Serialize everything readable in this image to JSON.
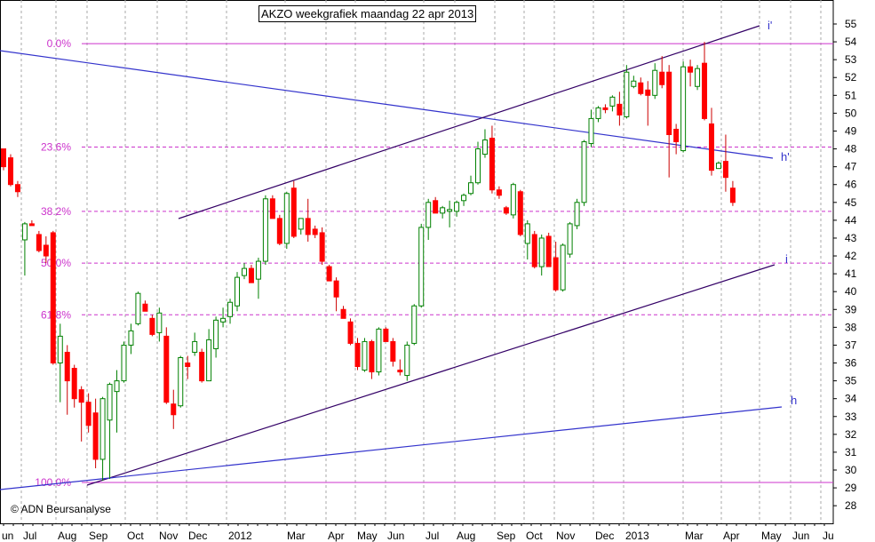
{
  "chart_data": {
    "type": "candlestick",
    "title": "AKZO weekgrafiek maandag 22 apr 2013",
    "copyright": "© ADN Beursanalyse",
    "ylim": [
      27,
      56
    ],
    "y_ticks": [
      28,
      29,
      30,
      31,
      32,
      33,
      34,
      35,
      36,
      37,
      38,
      39,
      40,
      41,
      42,
      43,
      44,
      45,
      46,
      47,
      48,
      49,
      50,
      51,
      52,
      53,
      54,
      55
    ],
    "x_labels": [
      "un",
      "Jul",
      "Aug",
      "Sep",
      "Oct",
      "Nov",
      "Dec",
      "2012",
      "Mar",
      "Apr",
      "May",
      "Jun",
      "Jul",
      "Aug",
      "Sep",
      "Oct",
      "Nov",
      "Dec",
      "2013",
      "Mar",
      "Apr",
      "May",
      "Jun",
      "Ju"
    ],
    "fib_levels": [
      {
        "label": "0.0%",
        "value": 53.9
      },
      {
        "label": "23.6%",
        "value": 48.1
      },
      {
        "label": "38.2%",
        "value": 44.5
      },
      {
        "label": "50.0%",
        "value": 41.6
      },
      {
        "label": "61.8%",
        "value": 38.7
      },
      {
        "label": "100.0%",
        "value": 29.3
      }
    ],
    "line_labels": [
      "i'",
      "h'",
      "i",
      "h"
    ],
    "colors": {
      "up": "#008000",
      "down": "#ff0000",
      "fib": "#cc33cc",
      "blue_line": "#3333cc",
      "dark_line": "#330066",
      "grid": "#aaaaaa"
    },
    "candles": [
      [
        48,
        47.8,
        46.8,
        47
      ],
      [
        47.5,
        47.7,
        45.9,
        46
      ],
      [
        46,
        46.2,
        45.3,
        45.6
      ],
      [
        42.9,
        43.9,
        40.9,
        43.8
      ],
      [
        43.8,
        44,
        43.7,
        43.7
      ],
      [
        43.2,
        43.4,
        42.2,
        42.3
      ],
      [
        42.6,
        43.1,
        41.6,
        42
      ],
      [
        43.3,
        43.4,
        35.9,
        36
      ],
      [
        36,
        38.2,
        33.8,
        37.5
      ],
      [
        36.6,
        37,
        33.1,
        35
      ],
      [
        35.7,
        35.9,
        33.5,
        34
      ],
      [
        34.5,
        34.7,
        31.6,
        33.8
      ],
      [
        33.8,
        34.3,
        32.1,
        32.5
      ],
      [
        33.2,
        34,
        30.1,
        30.6
      ],
      [
        30.6,
        34.1,
        29.4,
        34
      ],
      [
        32.8,
        34.9,
        29.5,
        34.8
      ],
      [
        34.4,
        35.6,
        32.1,
        35
      ],
      [
        35,
        37.2,
        34.9,
        37
      ],
      [
        37,
        38.2,
        36.5,
        37.8
      ],
      [
        38.2,
        40,
        38.1,
        39.9
      ],
      [
        39.3,
        39.5,
        38.9,
        38.9
      ],
      [
        38.5,
        38.7,
        37.5,
        37.6
      ],
      [
        37.7,
        39.1,
        37.2,
        38.8
      ],
      [
        37.5,
        38,
        33.7,
        33.8
      ],
      [
        33.7,
        34.5,
        32.3,
        33.1
      ],
      [
        33.6,
        36.4,
        33.5,
        36.3
      ],
      [
        36,
        36.4,
        35.1,
        35.8
      ],
      [
        36.6,
        37.7,
        36.4,
        37.2
      ],
      [
        36.6,
        36.8,
        34.9,
        35
      ],
      [
        35,
        37.9,
        35,
        37.3
      ],
      [
        36.8,
        38.6,
        36.3,
        38.4
      ],
      [
        38.3,
        39.1,
        38,
        38.5
      ],
      [
        38.6,
        39.6,
        38.2,
        39.4
      ],
      [
        39.2,
        41.1,
        38.9,
        40.8
      ],
      [
        40.9,
        41.6,
        40.7,
        41.3
      ],
      [
        41.3,
        41.5,
        40.5,
        40.5
      ],
      [
        40.7,
        41.9,
        39.6,
        41.7
      ],
      [
        41.7,
        45.4,
        41.5,
        45.2
      ],
      [
        45.2,
        45.4,
        44.1,
        44.1
      ],
      [
        44.1,
        44.3,
        42.6,
        42.7
      ],
      [
        42.7,
        45.6,
        42.4,
        45.5
      ],
      [
        45.8,
        46.2,
        43,
        43.1
      ],
      [
        43.5,
        44.1,
        43.2,
        44.1
      ],
      [
        44.1,
        45.2,
        42.8,
        43.2
      ],
      [
        43.5,
        43.7,
        43,
        43.2
      ],
      [
        43.3,
        43.6,
        41.5,
        41.7
      ],
      [
        41.4,
        41.5,
        40.6,
        40.6
      ],
      [
        40.6,
        40.8,
        38.9,
        39.7
      ],
      [
        39,
        39.2,
        38.5,
        38.5
      ],
      [
        38.3,
        38.5,
        37,
        37.1
      ],
      [
        37.1,
        37.4,
        35.6,
        35.8
      ],
      [
        35.6,
        37.4,
        35.5,
        37.2
      ],
      [
        37.2,
        37.3,
        35.1,
        35.5
      ],
      [
        35.5,
        38,
        35.3,
        37.9
      ],
      [
        37.9,
        38,
        37.2,
        37.2
      ],
      [
        37.2,
        37.4,
        35.8,
        36.1
      ],
      [
        35.6,
        36.2,
        35.3,
        35.5
      ],
      [
        35.3,
        37.2,
        35,
        37
      ],
      [
        37.1,
        39.3,
        37,
        39.2
      ],
      [
        39.2,
        43.8,
        39.1,
        43.6
      ],
      [
        43.6,
        45.2,
        42.9,
        45
      ],
      [
        45.1,
        45.3,
        44.4,
        44.4
      ],
      [
        44.4,
        44.8,
        44.1,
        44.7
      ],
      [
        44.5,
        45.1,
        43.6,
        44.6
      ],
      [
        44.5,
        45.1,
        44.2,
        45
      ],
      [
        45.1,
        45.5,
        44.8,
        45.4
      ],
      [
        45.5,
        46.5,
        45.4,
        46.1
      ],
      [
        46.1,
        48.4,
        46,
        48
      ],
      [
        47.7,
        49.1,
        47.5,
        48.5
      ],
      [
        48.6,
        49.3,
        45.5,
        45.7
      ],
      [
        45.7,
        45.9,
        45.2,
        45.4
      ],
      [
        44.7,
        44.8,
        44.3,
        44.4
      ],
      [
        44.3,
        46.1,
        44.1,
        46
      ],
      [
        45.6,
        45.7,
        43.1,
        43.2
      ],
      [
        42.7,
        44,
        41.8,
        43.8
      ],
      [
        43.2,
        43.4,
        41.3,
        41.4
      ],
      [
        41.4,
        43.2,
        40.9,
        43
      ],
      [
        43.1,
        43.3,
        41.4,
        41.4
      ],
      [
        41.9,
        42.8,
        40,
        40.1
      ],
      [
        40.1,
        42.7,
        40,
        42.6
      ],
      [
        42.1,
        43.9,
        41.9,
        43.8
      ],
      [
        43.7,
        45.2,
        43.5,
        45
      ],
      [
        45,
        48.5,
        44.8,
        48.4
      ],
      [
        48.3,
        50.2,
        48.1,
        49.7
      ],
      [
        49.7,
        50.4,
        49.5,
        50.3
      ],
      [
        50.3,
        50.5,
        50,
        50.2
      ],
      [
        50.4,
        51,
        50.1,
        50.9
      ],
      [
        50.5,
        51.2,
        49.3,
        49.9
      ],
      [
        49.8,
        52.7,
        49.7,
        52.3
      ],
      [
        51.5,
        52.1,
        51.4,
        51.8
      ],
      [
        51.7,
        52,
        51,
        51.1
      ],
      [
        51.3,
        51.8,
        49.3,
        51
      ],
      [
        51,
        52.8,
        50.8,
        52.4
      ],
      [
        52.3,
        53.2,
        51.4,
        51.6
      ],
      [
        52.3,
        52.7,
        46.4,
        48.8
      ],
      [
        49.1,
        49.4,
        47.7,
        48.4
      ],
      [
        47.9,
        52.9,
        47.8,
        52.6
      ],
      [
        52.6,
        53,
        51.5,
        52.3
      ],
      [
        51.5,
        52.7,
        51.3,
        52.5
      ],
      [
        52.8,
        54,
        49.6,
        49.7
      ],
      [
        49.4,
        50.3,
        46.5,
        46.8
      ],
      [
        46.9,
        47.3,
        47.1,
        47.2
      ],
      [
        47.3,
        48.8,
        45.6,
        46.4
      ],
      [
        45.8,
        46.2,
        44.8,
        45
      ]
    ],
    "annotations": [
      "0.0%",
      "23.6%",
      "38.2%",
      "50.0%",
      "61.8%",
      "100.0%",
      "i'",
      "h'",
      "i",
      "h"
    ]
  }
}
